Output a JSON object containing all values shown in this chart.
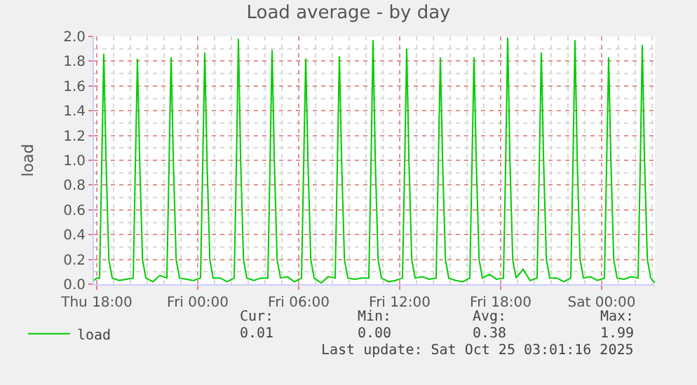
{
  "chart_data": {
    "type": "line",
    "title": "Load average - by day",
    "ylabel": "load",
    "x": [
      "2025-10-23T17:50",
      "2025-10-23T18:00",
      "2025-10-23T18:10",
      "2025-10-23T18:18",
      "2025-10-23T18:25",
      "2025-10-23T18:33",
      "2025-10-23T18:43",
      "2025-10-23T18:55",
      "2025-10-23T19:20",
      "2025-10-23T19:45",
      "2025-10-23T20:10",
      "2025-10-23T20:18",
      "2025-10-23T20:25",
      "2025-10-23T20:33",
      "2025-10-23T20:43",
      "2025-10-23T20:55",
      "2025-10-23T21:20",
      "2025-10-23T21:45",
      "2025-10-23T22:10",
      "2025-10-23T22:18",
      "2025-10-23T22:25",
      "2025-10-23T22:33",
      "2025-10-23T22:43",
      "2025-10-23T22:55",
      "2025-10-23T23:20",
      "2025-10-23T23:45",
      "2025-10-24T00:10",
      "2025-10-24T00:18",
      "2025-10-24T00:25",
      "2025-10-24T00:33",
      "2025-10-24T00:43",
      "2025-10-24T00:55",
      "2025-10-24T01:20",
      "2025-10-24T01:45",
      "2025-10-24T02:10",
      "2025-10-24T02:18",
      "2025-10-24T02:25",
      "2025-10-24T02:33",
      "2025-10-24T02:43",
      "2025-10-24T02:55",
      "2025-10-24T03:20",
      "2025-10-24T03:45",
      "2025-10-24T04:10",
      "2025-10-24T04:18",
      "2025-10-24T04:25",
      "2025-10-24T04:33",
      "2025-10-24T04:43",
      "2025-10-24T04:55",
      "2025-10-24T05:20",
      "2025-10-24T05:45",
      "2025-10-24T06:10",
      "2025-10-24T06:18",
      "2025-10-24T06:25",
      "2025-10-24T06:33",
      "2025-10-24T06:43",
      "2025-10-24T06:55",
      "2025-10-24T07:20",
      "2025-10-24T07:45",
      "2025-10-24T08:10",
      "2025-10-24T08:18",
      "2025-10-24T08:25",
      "2025-10-24T08:33",
      "2025-10-24T08:43",
      "2025-10-24T08:55",
      "2025-10-24T09:20",
      "2025-10-24T09:45",
      "2025-10-24T10:10",
      "2025-10-24T10:18",
      "2025-10-24T10:25",
      "2025-10-24T10:33",
      "2025-10-24T10:43",
      "2025-10-24T10:55",
      "2025-10-24T11:20",
      "2025-10-24T11:45",
      "2025-10-24T12:10",
      "2025-10-24T12:18",
      "2025-10-24T12:25",
      "2025-10-24T12:33",
      "2025-10-24T12:43",
      "2025-10-24T12:55",
      "2025-10-24T13:20",
      "2025-10-24T13:45",
      "2025-10-24T14:10",
      "2025-10-24T14:18",
      "2025-10-24T14:25",
      "2025-10-24T14:33",
      "2025-10-24T14:43",
      "2025-10-24T14:55",
      "2025-10-24T15:20",
      "2025-10-24T15:45",
      "2025-10-24T16:10",
      "2025-10-24T16:18",
      "2025-10-24T16:25",
      "2025-10-24T16:33",
      "2025-10-24T16:43",
      "2025-10-24T16:55",
      "2025-10-24T17:20",
      "2025-10-24T17:45",
      "2025-10-24T18:10",
      "2025-10-24T18:18",
      "2025-10-24T18:25",
      "2025-10-24T18:33",
      "2025-10-24T18:43",
      "2025-10-24T18:55",
      "2025-10-24T19:20",
      "2025-10-24T19:45",
      "2025-10-24T20:10",
      "2025-10-24T20:18",
      "2025-10-24T20:25",
      "2025-10-24T20:33",
      "2025-10-24T20:43",
      "2025-10-24T20:55",
      "2025-10-24T21:20",
      "2025-10-24T21:45",
      "2025-10-24T22:10",
      "2025-10-24T22:18",
      "2025-10-24T22:25",
      "2025-10-24T22:33",
      "2025-10-24T22:43",
      "2025-10-24T22:55",
      "2025-10-24T23:20",
      "2025-10-24T23:45",
      "2025-10-25T00:10",
      "2025-10-25T00:18",
      "2025-10-25T00:25",
      "2025-10-25T00:33",
      "2025-10-25T00:43",
      "2025-10-25T00:55",
      "2025-10-25T01:20",
      "2025-10-25T01:45",
      "2025-10-25T02:10",
      "2025-10-25T02:18",
      "2025-10-25T02:25",
      "2025-10-25T02:33",
      "2025-10-25T02:43",
      "2025-10-25T02:55",
      "2025-10-25T03:10"
    ],
    "series": [
      {
        "name": "load",
        "color": "#00cc00",
        "values": [
          0.03,
          0.05,
          0.05,
          1.0,
          1.86,
          1.0,
          0.2,
          0.05,
          0.03,
          0.04,
          0.05,
          1.0,
          1.82,
          1.0,
          0.2,
          0.05,
          0.02,
          0.07,
          0.05,
          1.0,
          1.83,
          1.0,
          0.2,
          0.05,
          0.04,
          0.03,
          0.05,
          1.0,
          1.87,
          1.0,
          0.2,
          0.05,
          0.05,
          0.02,
          0.05,
          1.0,
          1.98,
          1.0,
          0.2,
          0.05,
          0.03,
          0.05,
          0.05,
          1.0,
          1.89,
          1.0,
          0.2,
          0.05,
          0.06,
          0.02,
          0.05,
          1.0,
          1.82,
          1.0,
          0.2,
          0.05,
          0.01,
          0.06,
          0.05,
          1.0,
          1.84,
          1.0,
          0.2,
          0.05,
          0.04,
          0.05,
          0.05,
          1.0,
          1.97,
          1.0,
          0.2,
          0.05,
          0.02,
          0.03,
          0.05,
          1.0,
          1.9,
          1.0,
          0.2,
          0.05,
          0.06,
          0.04,
          0.05,
          1.0,
          1.83,
          1.0,
          0.2,
          0.05,
          0.03,
          0.02,
          0.05,
          1.0,
          1.83,
          1.0,
          0.2,
          0.05,
          0.08,
          0.04,
          0.05,
          1.0,
          1.99,
          1.0,
          0.2,
          0.05,
          0.12,
          0.03,
          0.05,
          1.0,
          1.87,
          1.0,
          0.2,
          0.05,
          0.05,
          0.02,
          0.05,
          1.0,
          1.97,
          1.0,
          0.2,
          0.05,
          0.06,
          0.03,
          0.05,
          1.0,
          1.83,
          1.0,
          0.2,
          0.05,
          0.04,
          0.06,
          0.05,
          1.0,
          1.93,
          1.0,
          0.2,
          0.05,
          0.01
        ]
      }
    ],
    "xlim": [
      "2025-10-23T17:50",
      "2025-10-25T03:10"
    ],
    "xticks": [
      {
        "value": "2025-10-23T18:00",
        "label": "Thu 18:00"
      },
      {
        "value": "2025-10-24T00:00",
        "label": "Fri 00:00"
      },
      {
        "value": "2025-10-24T06:00",
        "label": "Fri 06:00"
      },
      {
        "value": "2025-10-24T12:00",
        "label": "Fri 12:00"
      },
      {
        "value": "2025-10-24T18:00",
        "label": "Fri 18:00"
      },
      {
        "value": "2025-10-25T00:00",
        "label": "Sat 00:00"
      }
    ],
    "ylim": [
      0,
      2.0
    ],
    "yticks": [
      {
        "value": 0,
        "label": "0.0"
      },
      {
        "value": 0.2,
        "label": "0.2"
      },
      {
        "value": 0.4,
        "label": "0.4"
      },
      {
        "value": 0.6,
        "label": "0.6"
      },
      {
        "value": 0.8,
        "label": "0.8"
      },
      {
        "value": 1.0,
        "label": "1.0"
      },
      {
        "value": 1.2,
        "label": "1.2"
      },
      {
        "value": 1.4,
        "label": "1.4"
      },
      {
        "value": 1.6,
        "label": "1.6"
      },
      {
        "value": 1.8,
        "label": "1.8"
      },
      {
        "value": 2.0,
        "label": "2.0"
      }
    ],
    "grid": true,
    "legend": "bottom left",
    "marker": "none",
    "line_style": "solid",
    "annotations": [
      "Cur:",
      "0.01",
      "Min:",
      "0.00",
      "Avg:",
      "0.38",
      "Max:",
      "1.99",
      "Last update: Sat Oct 25 03:01:16 2025"
    ]
  }
}
